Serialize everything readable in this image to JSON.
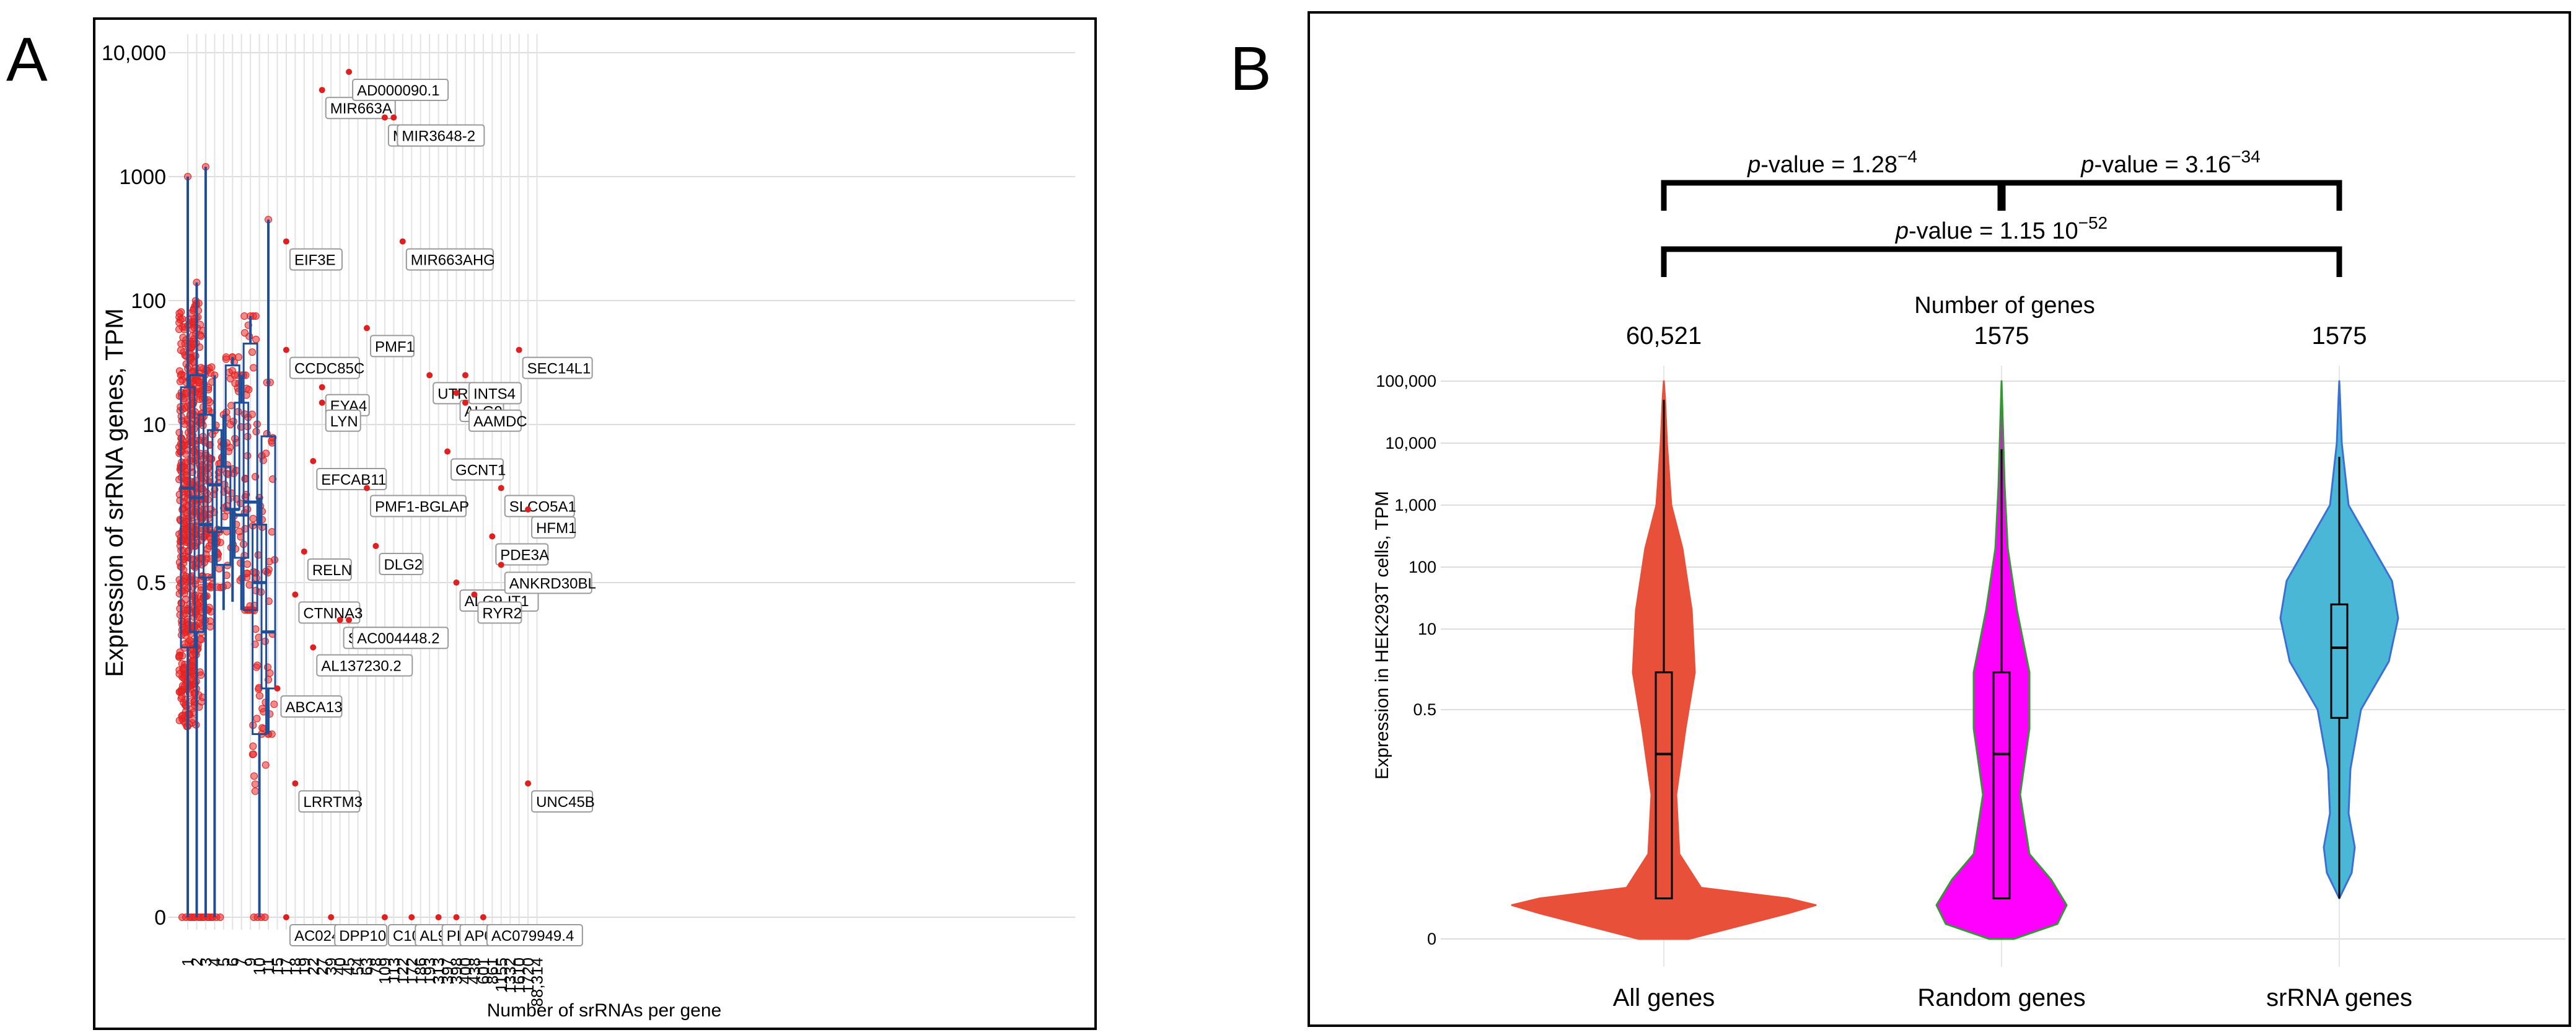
{
  "panels": {
    "A": {
      "letter": "A"
    },
    "B": {
      "letter": "B"
    }
  },
  "chart_data": [
    {
      "type": "boxplot",
      "panel": "A",
      "ylabel": "Expression of srRNA genes, TPM",
      "xlabel": "Number of srRNAs  per gene",
      "yscale": "log-like (0 shown at bottom)",
      "yticks": [
        "0",
        "0.5",
        "10",
        "100",
        "1000",
        "10,000"
      ],
      "ytick_values": [
        0,
        0.5,
        10,
        100,
        1000,
        10000
      ],
      "grid": true,
      "categories": [
        "1",
        "2",
        "3",
        "4",
        "5",
        "6",
        "7",
        "9",
        "10",
        "11",
        "15",
        "17",
        "18",
        "19",
        "22",
        "27",
        "39",
        "40",
        "45",
        "54",
        "63",
        "78",
        "109",
        "113",
        "122",
        "172",
        "186",
        "193",
        "313",
        "397",
        "398",
        "400",
        "438",
        "601",
        "861",
        "1155",
        "1332",
        "1610",
        "1720",
        "88,314"
      ],
      "boxes": [
        {
          "category": "1",
          "q1": 0.15,
          "median": 3.0,
          "q3": 20,
          "whisker_low": 0,
          "whisker_high": 1000,
          "n_points": "many"
        },
        {
          "category": "2",
          "q1": 0.2,
          "median": 2.5,
          "q3": 25,
          "whisker_low": 0,
          "whisker_high": 140
        },
        {
          "category": "3",
          "q1": 0.55,
          "median": 1.5,
          "q3": 12,
          "whisker_low": 0,
          "whisker_high": 1200
        },
        {
          "category": "4",
          "q1": 1.3,
          "median": 3.2,
          "q3": 9,
          "whisker_low": 0,
          "whisker_high": 25
        },
        {
          "category": "5",
          "q1": 0.7,
          "median": 1.4,
          "q3": 4.5,
          "whisker_low": 0.3,
          "whisker_high": 12
        },
        {
          "category": "6",
          "q1": 2.0,
          "median": 2.0,
          "q3": 30,
          "whisker_low": 0.35,
          "whisker_high": 35
        },
        {
          "category": "7",
          "q1": 0.8,
          "median": 1.8,
          "q3": 15,
          "whisker_low": 0.3,
          "whisker_high": 25
        },
        {
          "category": "9",
          "q1": 0.3,
          "median": 2.3,
          "q3": 45,
          "whisker_low": 0.3,
          "whisker_high": 75
        },
        {
          "category": "10",
          "q1": 0.03,
          "median": 0.5,
          "q3": 1.5,
          "whisker_low": 0,
          "whisker_high": 2.5
        },
        {
          "category": "11",
          "q1": 0.07,
          "median": 0.2,
          "q3": 8,
          "whisker_low": 0.03,
          "whisker_high": 450
        }
      ],
      "gene_labels": [
        {
          "name": "EIF3E",
          "category": "17",
          "y": 300
        },
        {
          "name": "CCDC85C",
          "category": "17",
          "y": 40
        },
        {
          "name": "ABCA13",
          "category": "15",
          "y": 0.07
        },
        {
          "name": "LRRTM3",
          "category": "18",
          "y": 0.012
        },
        {
          "name": "AC024563.1",
          "category": "17",
          "y": 0
        },
        {
          "name": "RELN",
          "category": "19",
          "y": 0.9
        },
        {
          "name": "CTNNA3",
          "category": "18",
          "y": 0.4
        },
        {
          "name": "AL137230.2",
          "category": "22",
          "y": 0.15
        },
        {
          "name": "EFCAB11",
          "category": "22",
          "y": 5
        },
        {
          "name": "EYA4",
          "category": "27",
          "y": 20
        },
        {
          "name": "LYN",
          "category": "27",
          "y": 15
        },
        {
          "name": "MIR663A",
          "category": "27",
          "y": 5000
        },
        {
          "name": "DPP10",
          "category": "39",
          "y": 0
        },
        {
          "name": "SORCS2",
          "category": "40",
          "y": 0.25
        },
        {
          "name": "AC004448.2",
          "category": "45",
          "y": 0.25
        },
        {
          "name": "AD000090.1",
          "category": "45",
          "y": 7000
        },
        {
          "name": "PMF1-BGLAP",
          "category": "63",
          "y": 3
        },
        {
          "name": "PMF1",
          "category": "63",
          "y": 60
        },
        {
          "name": "MIR3648-1",
          "category": "109",
          "y": 3000
        },
        {
          "name": "MIR3648-2",
          "category": "113",
          "y": 3000
        },
        {
          "name": "MIR663AHG",
          "category": "122",
          "y": 300
        },
        {
          "name": "DLG2",
          "category": "78",
          "y": 1
        },
        {
          "name": "C10orf53",
          "category": "109",
          "y": 0
        },
        {
          "name": "AL928646.1",
          "category": "172",
          "y": 0
        },
        {
          "name": "UTRN",
          "category": "193",
          "y": 25
        },
        {
          "name": "PID1",
          "category": "313",
          "y": 0
        },
        {
          "name": "AP001781.2",
          "category": "398",
          "y": 0
        },
        {
          "name": "ALG9",
          "category": "398",
          "y": 18
        },
        {
          "name": "INTS4",
          "category": "400",
          "y": 25
        },
        {
          "name": "AAMDC",
          "category": "400",
          "y": 15
        },
        {
          "name": "GCNT1",
          "category": "397",
          "y": 6
        },
        {
          "name": "ALG9-IT1",
          "category": "398",
          "y": 0.5
        },
        {
          "name": "RYR2",
          "category": "438",
          "y": 0.4
        },
        {
          "name": "PDE3A",
          "category": "861",
          "y": 1.2
        },
        {
          "name": "SLCO5A1",
          "category": "1155",
          "y": 3
        },
        {
          "name": "ANKRD30BL",
          "category": "1155",
          "y": 0.7
        },
        {
          "name": "AC079949.4",
          "category": "601",
          "y": 0
        },
        {
          "name": "SEC14L1",
          "category": "1610",
          "y": 40
        },
        {
          "name": "HFM1",
          "category": "1720",
          "y": 2
        },
        {
          "name": "UNC45B",
          "category": "1720",
          "y": 0.012
        }
      ]
    },
    {
      "type": "violin",
      "panel": "B",
      "ylabel": "Expression in HEK293T cells, TPM",
      "yticks": [
        "0",
        "0.5",
        "10",
        "100",
        "1,000",
        "10,000",
        "100,000"
      ],
      "ytick_values": [
        0,
        0.5,
        10,
        100,
        1000,
        10000,
        100000
      ],
      "grid": true,
      "n_header": "Number of genes",
      "groups": [
        {
          "name": "All genes",
          "n": "60,521",
          "color": "#e8503a",
          "q1": 0.003,
          "median": 0.15,
          "q3": 2,
          "whisker_low": 0,
          "whisker_high": 50000
        },
        {
          "name": "Random genes",
          "n": "1575",
          "color": "#ff00ff",
          "outline": "#2f9a2f",
          "q1": 0.003,
          "median": 0.15,
          "q3": 2,
          "whisker_low": 0,
          "whisker_high": 8000
        },
        {
          "name": "srRNA genes",
          "n": "1575",
          "color": "#4ab7d6",
          "outline": "#3b6fd6",
          "q1": 0.4,
          "median": 5,
          "q3": 25,
          "whisker_low": 0.003,
          "whisker_high": 6000
        }
      ],
      "comparisons": [
        {
          "from": "All genes",
          "to": "Random genes",
          "prefix": "p",
          "label": "-value = 1.28",
          "sup": "−4"
        },
        {
          "from": "Random genes",
          "to": "srRNA genes",
          "prefix": "p",
          "label": "-value = 3.16",
          "sup": "−34"
        },
        {
          "from": "All genes",
          "to": "srRNA genes",
          "prefix": "p",
          "label": "-value = 1.15 10",
          "sup": "−52"
        }
      ]
    }
  ]
}
